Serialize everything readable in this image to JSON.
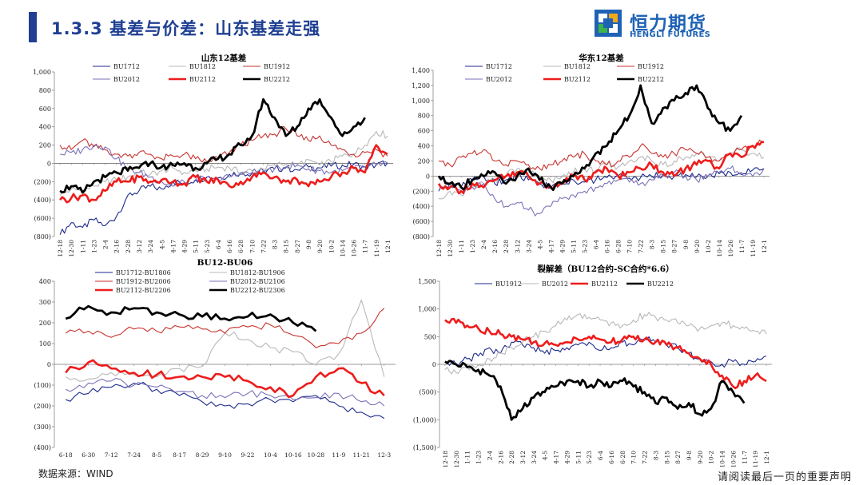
{
  "header": {
    "title": "1.3.3 基差与价差：山东基差走强",
    "logo_cn": "恒力期货",
    "logo_en": "HENGLI FUTURES"
  },
  "footer": {
    "source": "数据来源：WIND",
    "disclaimer": "请阅读最后一页的重要声明"
  },
  "chart_data": [
    {
      "id": "c1",
      "type": "line",
      "title": "山东12基差",
      "ylim": [
        -800,
        1000
      ],
      "yticks": [
        -800,
        -600,
        -400,
        -200,
        0,
        200,
        400,
        600,
        800,
        1000
      ],
      "ytick_labels": [
        "(800)",
        "(600)",
        "(400)",
        "(200)",
        "0",
        "200",
        "400",
        "600",
        "800",
        "1,000"
      ],
      "categories": [
        "12-18",
        "12-30",
        "1-11",
        "1-23",
        "2-4",
        "2-16",
        "2-28",
        "3-12",
        "3-24",
        "4-5",
        "4-17",
        "4-29",
        "5-11",
        "5-23",
        "6-4",
        "6-16",
        "6-28",
        "7-10",
        "7-22",
        "8-3",
        "8-15",
        "8-27",
        "9-8",
        "9-20",
        "10-2",
        "10-14",
        "10-26",
        "11-7",
        "11-19",
        "12-1"
      ],
      "series": [
        {
          "name": "BU1712",
          "color": "#1c2a8c",
          "width": 1.1,
          "values": [
            -780,
            -650,
            -700,
            -620,
            -680,
            -580,
            -350,
            -300,
            -250,
            -280,
            -200,
            -220,
            -180,
            -150,
            -160,
            -120,
            -100,
            -110,
            -80,
            -60,
            -50,
            -70,
            -40,
            -50,
            -30,
            -20,
            -10,
            -40,
            -20,
            10
          ]
        },
        {
          "name": "BU1812",
          "color": "#b8b8b8",
          "width": 1.1,
          "values": [
            -350,
            -280,
            -300,
            -250,
            -200,
            -180,
            -150,
            -100,
            -120,
            -80,
            -50,
            -100,
            -80,
            -60,
            -40,
            -50,
            -100,
            -80,
            -60,
            -20,
            0,
            -20,
            40,
            -20,
            20,
            80,
            100,
            200,
            350,
            300
          ]
        },
        {
          "name": "BU1912",
          "color": "#c8332f",
          "width": 1.1,
          "values": [
            200,
            150,
            250,
            180,
            150,
            100,
            80,
            120,
            100,
            50,
            80,
            100,
            50,
            20,
            60,
            120,
            200,
            250,
            300,
            320,
            380,
            300,
            250,
            300,
            200,
            150,
            100,
            120,
            150,
            80
          ]
        },
        {
          "name": "BU2012",
          "color": "#7a72b8",
          "width": 1.1,
          "values": [
            100,
            120,
            150,
            200,
            180,
            50,
            -50,
            -100,
            -150,
            -200,
            -250,
            -200,
            -150,
            -200,
            -180,
            -150,
            -120,
            -100,
            -80,
            -60,
            -40,
            -20,
            -60,
            -80,
            -100,
            -80,
            -60,
            -40,
            -20,
            0
          ]
        },
        {
          "name": "BU2112",
          "color": "#ee1c1c",
          "width": 2.6,
          "values": [
            -400,
            -380,
            -350,
            -400,
            -300,
            -200,
            -200,
            -150,
            -200,
            -180,
            -200,
            -220,
            -150,
            -200,
            -180,
            -250,
            -200,
            -150,
            -100,
            -150,
            -200,
            -180,
            -250,
            -200,
            -150,
            -100,
            -50,
            -100,
            200,
            100
          ]
        },
        {
          "name": "BU2212",
          "color": "#000000",
          "width": 2.8,
          "values": [
            -300,
            -250,
            -320,
            -200,
            -150,
            -100,
            -80,
            -50,
            0,
            -40,
            -20,
            0,
            -50,
            0,
            50,
            100,
            200,
            300,
            700,
            500,
            300,
            400,
            600,
            700,
            500,
            300,
            400,
            500,
            null,
            null
          ]
        }
      ]
    },
    {
      "id": "c2",
      "type": "line",
      "title": "华东12基差",
      "ylim": [
        -800,
        1400
      ],
      "yticks": [
        -800,
        -600,
        -400,
        -200,
        0,
        200,
        400,
        600,
        800,
        1000,
        1200,
        1400
      ],
      "ytick_labels": [
        "(800)",
        "(600)",
        "(400)",
        "(200)",
        "0",
        "200",
        "400",
        "600",
        "800",
        "1,000",
        "1,200",
        "1,400"
      ],
      "categories": [
        "12-18",
        "12-30",
        "1-11",
        "1-23",
        "2-4",
        "2-16",
        "2-28",
        "3-12",
        "3-24",
        "4-5",
        "4-17",
        "4-29",
        "5-11",
        "5-23",
        "6-4",
        "6-16",
        "6-28",
        "7-10",
        "7-22",
        "8-3",
        "8-15",
        "8-27",
        "9-8",
        "9-20",
        "10-2",
        "10-14",
        "10-26",
        "11-7",
        "11-19",
        "12-1"
      ],
      "series": [
        {
          "name": "BU1712",
          "color": "#1c2a8c",
          "width": 1.1,
          "values": [
            -200,
            -100,
            -150,
            -50,
            0,
            -100,
            -50,
            0,
            -50,
            -100,
            -150,
            -100,
            -50,
            -80,
            -50,
            -20,
            0,
            -30,
            -20,
            0,
            20,
            0,
            20,
            -10,
            0,
            30,
            50,
            20,
            80,
            100
          ]
        },
        {
          "name": "BU1812",
          "color": "#b8b8b8",
          "width": 1.1,
          "values": [
            -300,
            -200,
            -250,
            -150,
            -100,
            -50,
            0,
            100,
            50,
            0,
            -50,
            0,
            50,
            100,
            80,
            150,
            120,
            200,
            250,
            200,
            150,
            200,
            250,
            300,
            250,
            200,
            300,
            350,
            300,
            250
          ]
        },
        {
          "name": "BU1912",
          "color": "#c8332f",
          "width": 1.1,
          "values": [
            200,
            150,
            250,
            300,
            350,
            200,
            150,
            200,
            150,
            100,
            150,
            200,
            250,
            300,
            200,
            150,
            200,
            250,
            400,
            300,
            250,
            300,
            350,
            300,
            250,
            200,
            300,
            350,
            400,
            450
          ]
        },
        {
          "name": "BU2012",
          "color": "#7a72b8",
          "width": 1.1,
          "values": [
            0,
            -100,
            -200,
            -150,
            -100,
            -300,
            -400,
            -350,
            -450,
            -500,
            -400,
            -300,
            -250,
            -200,
            -150,
            -100,
            -50,
            -80,
            -100,
            -50,
            0,
            50,
            0,
            -50,
            0,
            50,
            100,
            50,
            0,
            100
          ]
        },
        {
          "name": "BU2112",
          "color": "#ee1c1c",
          "width": 2.6,
          "values": [
            -100,
            -150,
            -200,
            -100,
            -150,
            -50,
            0,
            50,
            0,
            -100,
            -150,
            -100,
            0,
            -50,
            50,
            100,
            0,
            50,
            100,
            150,
            50,
            0,
            100,
            150,
            200,
            100,
            300,
            250,
            400,
            450
          ]
        },
        {
          "name": "BU2212",
          "color": "#000000",
          "width": 2.8,
          "values": [
            0,
            -100,
            -150,
            -50,
            0,
            50,
            -100,
            0,
            100,
            -50,
            -150,
            -100,
            0,
            100,
            300,
            400,
            600,
            800,
            1200,
            700,
            900,
            1000,
            1100,
            1200,
            900,
            700,
            600,
            800,
            null,
            null
          ]
        }
      ]
    },
    {
      "id": "c3",
      "type": "line",
      "title": "BU12-BU06",
      "ylim": [
        -400,
        400
      ],
      "yticks": [
        -400,
        -300,
        -200,
        -100,
        0,
        100,
        200,
        300,
        400
      ],
      "ytick_labels": [
        "(400)",
        "(300)",
        "(200)",
        "(100)",
        "0",
        "100",
        "200",
        "300",
        "400"
      ],
      "categories": [
        "6-18",
        "6-30",
        "7-12",
        "7-24",
        "8-5",
        "8-17",
        "8-29",
        "9-10",
        "9-22",
        "10-4",
        "10-16",
        "10-28",
        "11-9",
        "11-21",
        "12-3"
      ],
      "series": [
        {
          "name": "BU1712-BU1806",
          "color": "#1c2a8c",
          "width": 1.1,
          "values": [
            -170,
            -140,
            -110,
            -90,
            -120,
            -150,
            -180,
            -200,
            -190,
            -170,
            -180,
            -150,
            -200,
            -230,
            -260
          ]
        },
        {
          "name": "BU1812-BU1906",
          "color": "#b8b8b8",
          "width": 1.1,
          "values": [
            -60,
            -70,
            -40,
            -50,
            -60,
            -20,
            -10,
            150,
            120,
            80,
            60,
            0,
            50,
            310,
            -60
          ]
        },
        {
          "name": "BU1912-BU2006",
          "color": "#c8332f",
          "width": 1.1,
          "values": [
            150,
            160,
            130,
            170,
            160,
            180,
            170,
            150,
            180,
            190,
            140,
            80,
            100,
            150,
            270
          ]
        },
        {
          "name": "BU2012-BU2106",
          "color": "#7a72b8",
          "width": 1.1,
          "values": [
            -120,
            -90,
            -80,
            -100,
            -110,
            -130,
            -150,
            -160,
            -140,
            -150,
            -170,
            -160,
            -140,
            -180,
            -200
          ]
        },
        {
          "name": "BU2112-BU2206",
          "color": "#ee1c1c",
          "width": 2.6,
          "values": [
            -40,
            10,
            -20,
            -40,
            -50,
            -60,
            -60,
            -60,
            -80,
            -110,
            -150,
            -60,
            -20,
            -90,
            -150
          ]
        },
        {
          "name": "BU2212-BU2306",
          "color": "#000000",
          "width": 2.8,
          "values": [
            220,
            280,
            250,
            270,
            250,
            240,
            230,
            220,
            230,
            240,
            200,
            160,
            null,
            null,
            null
          ]
        }
      ]
    },
    {
      "id": "c4",
      "type": "line",
      "title": "裂解差（BU12合约-SC合约*6.6）",
      "ylim": [
        -1500,
        1500
      ],
      "yticks": [
        -1500,
        -1000,
        -500,
        0,
        500,
        1000,
        1500
      ],
      "ytick_labels": [
        "(1,500)",
        "(1,000)",
        "(500)",
        "0",
        "500",
        "1,000",
        "1,500"
      ],
      "categories": [
        "12-18",
        "12-30",
        "1-11",
        "1-23",
        "2-4",
        "2-16",
        "2-28",
        "3-12",
        "3-24",
        "4-5",
        "4-17",
        "4-29",
        "5-11",
        "5-23",
        "6-4",
        "6-16",
        "6-28",
        "7-10",
        "7-22",
        "8-3",
        "8-15",
        "8-27",
        "9-8",
        "9-20",
        "10-2",
        "10-14",
        "10-26",
        "11-7",
        "11-19",
        "12-1"
      ],
      "series": [
        {
          "name": "BU1912",
          "color": "#1c2a8c",
          "width": 1.1,
          "values": [
            50,
            0,
            100,
            150,
            300,
            200,
            400,
            350,
            300,
            200,
            250,
            300,
            350,
            400,
            250,
            300,
            400,
            350,
            450,
            400,
            350,
            300,
            200,
            100,
            50,
            0,
            50,
            0,
            50,
            150
          ]
        },
        {
          "name": "BU2012",
          "color": "#b8b8b8",
          "width": 1.1,
          "values": [
            -100,
            -150,
            -50,
            0,
            100,
            200,
            300,
            400,
            500,
            600,
            700,
            800,
            900,
            850,
            800,
            750,
            700,
            800,
            900,
            850,
            800,
            750,
            700,
            650,
            700,
            750,
            700,
            650,
            600,
            550
          ]
        },
        {
          "name": "BU2112",
          "color": "#ee1c1c",
          "width": 2.6,
          "values": [
            800,
            750,
            700,
            650,
            600,
            550,
            500,
            450,
            400,
            380,
            350,
            400,
            450,
            500,
            450,
            400,
            450,
            500,
            450,
            400,
            350,
            300,
            200,
            100,
            0,
            -200,
            -400,
            -300,
            -200,
            -300
          ]
        },
        {
          "name": "BU2212",
          "color": "#000000",
          "width": 2.8,
          "values": [
            50,
            0,
            -50,
            -100,
            -200,
            -400,
            -1000,
            -800,
            -600,
            -500,
            -400,
            -300,
            -300,
            -400,
            -300,
            -400,
            -300,
            -400,
            -500,
            -700,
            -600,
            -800,
            -700,
            -900,
            -800,
            -300,
            -500,
            -700,
            null,
            null
          ]
        }
      ]
    }
  ]
}
